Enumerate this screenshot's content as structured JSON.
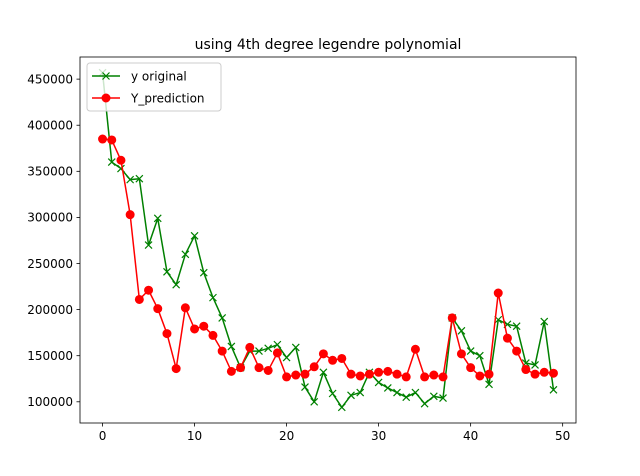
{
  "chart_data": {
    "type": "line",
    "title": "using 4th degree legendre polynomial",
    "xlabel": "",
    "ylabel": "",
    "xlim": [
      -2.45,
      51.45
    ],
    "ylim": [
      77000,
      474000
    ],
    "xticks": [
      0,
      10,
      20,
      30,
      40,
      50
    ],
    "yticks": [
      100000,
      150000,
      200000,
      250000,
      300000,
      350000,
      400000,
      450000
    ],
    "ytick_labels": [
      "100000",
      "150000",
      "200000",
      "250000",
      "300000",
      "350000",
      "400000",
      "450000"
    ],
    "grid": false,
    "legend_position": "upper left",
    "x": [
      0,
      1,
      2,
      3,
      4,
      5,
      6,
      7,
      8,
      9,
      10,
      11,
      12,
      13,
      14,
      15,
      16,
      17,
      18,
      19,
      20,
      21,
      22,
      23,
      24,
      25,
      26,
      27,
      28,
      29,
      30,
      31,
      32,
      33,
      34,
      35,
      36,
      37,
      38,
      39,
      40,
      41,
      42,
      43,
      44,
      45,
      46,
      47,
      48,
      49
    ],
    "series": [
      {
        "name": "y original",
        "color": "#008000",
        "marker": "x",
        "values": [
          457000,
          360000,
          353000,
          341000,
          342000,
          270000,
          299000,
          241000,
          227000,
          260000,
          280000,
          240000,
          213000,
          191000,
          160000,
          137000,
          155000,
          155000,
          158000,
          162000,
          148000,
          159000,
          116000,
          100000,
          132000,
          109000,
          94000,
          107000,
          110000,
          132000,
          121000,
          115000,
          110000,
          105000,
          110000,
          98000,
          106000,
          104000,
          191000,
          177000,
          155000,
          150000,
          119000,
          189000,
          184000,
          182000,
          142000,
          140000,
          187000,
          113000
        ]
      },
      {
        "name": "Y_prediction",
        "color": "#ff0000",
        "marker": "o",
        "values": [
          385000,
          384000,
          362000,
          303000,
          211000,
          221000,
          201000,
          174000,
          136000,
          202000,
          179000,
          182000,
          172000,
          155000,
          133000,
          137000,
          159000,
          137000,
          134000,
          153000,
          127000,
          129000,
          130000,
          138000,
          152000,
          145000,
          147000,
          130000,
          128000,
          130000,
          132000,
          133000,
          130000,
          127000,
          157000,
          127000,
          129000,
          127000,
          191000,
          152000,
          137000,
          128000,
          130000,
          218000,
          169000,
          155000,
          135000,
          130000,
          132000,
          131000
        ]
      }
    ]
  }
}
